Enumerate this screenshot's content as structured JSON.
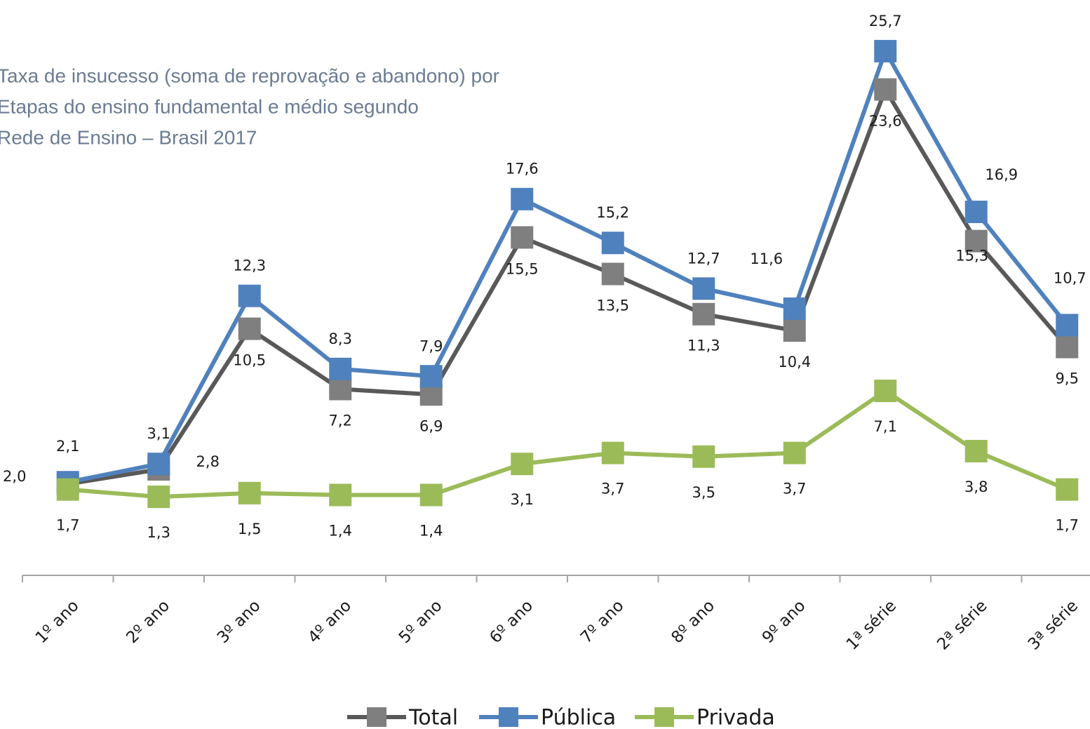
{
  "chart_data": {
    "type": "line",
    "title": [
      "Taxa de insucesso (soma de reprovação e abandono) por",
      "Etapas do ensino fundamental e médio segundo",
      "Rede de Ensino – Brasil 2017"
    ],
    "categories": [
      "1º ano",
      "2º ano",
      "3º ano",
      "4º ano",
      "5º ano",
      "6º ano",
      "7º ano",
      "8º ano",
      "9º ano",
      "1ª série",
      "2ª série",
      "3ª série"
    ],
    "series": [
      {
        "name": "Total",
        "color": "#595959",
        "marker_color": "#7f7f7f",
        "values": [
          2.0,
          2.8,
          10.5,
          7.2,
          6.9,
          15.5,
          13.5,
          11.3,
          10.4,
          23.6,
          15.3,
          9.5
        ],
        "value_labels": [
          "2,0",
          "2,8",
          "10,5",
          "7,2",
          "6,9",
          "15,5",
          "13,5",
          "11,3",
          "10,4",
          "23,6",
          "15,3",
          "9,5"
        ]
      },
      {
        "name": "Pública",
        "color": "#4f81bd",
        "marker_color": "#4f81bd",
        "values": [
          2.1,
          3.1,
          12.3,
          8.3,
          7.9,
          17.6,
          15.2,
          12.7,
          11.6,
          25.7,
          16.9,
          10.7
        ],
        "value_labels": [
          "2,1",
          "3,1",
          "12,3",
          "8,3",
          "7,9",
          "17,6",
          "15,2",
          "12,7",
          "11,6",
          "25,7",
          "16,9",
          "10,7"
        ]
      },
      {
        "name": "Privada",
        "color": "#9bbb59",
        "marker_color": "#9bbb59",
        "values": [
          1.7,
          1.3,
          1.5,
          1.4,
          1.4,
          3.1,
          3.7,
          3.5,
          3.7,
          7.1,
          3.8,
          1.7
        ],
        "value_labels": [
          "1,7",
          "1,3",
          "1,5",
          "1,4",
          "1,4",
          "3,1",
          "3,7",
          "3,5",
          "3,7",
          "7,1",
          "3,8",
          "1,7"
        ]
      }
    ],
    "ylim": [
      -3,
      28.5
    ],
    "legend": "bottom"
  }
}
